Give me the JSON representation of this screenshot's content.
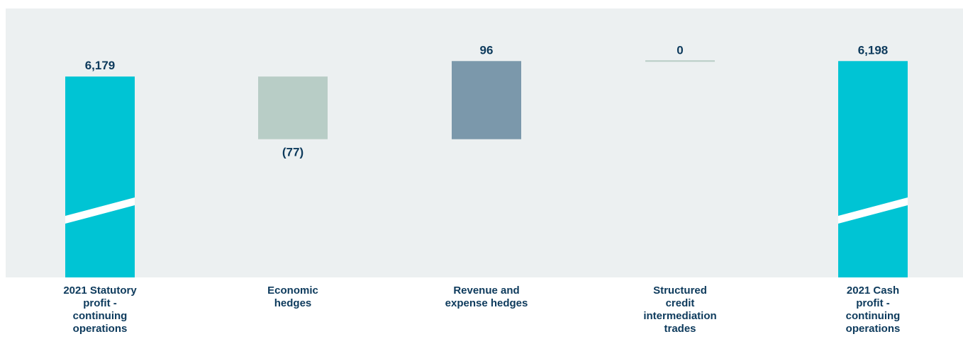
{
  "chart_data": {
    "type": "waterfall",
    "categories": [
      [
        "2021 Statutory",
        "profit -",
        "continuing",
        "operations"
      ],
      [
        "Economic",
        "hedges"
      ],
      [
        "Revenue and",
        "expense hedges"
      ],
      [
        "Structured",
        "credit",
        "intermediation",
        "trades"
      ],
      [
        "2021 Cash",
        "profit -",
        "continuing",
        "operations"
      ]
    ],
    "values": [
      6179,
      -77,
      96,
      0,
      6198
    ],
    "value_labels": [
      "6,179",
      "(77)",
      "96",
      "0",
      "6,198"
    ],
    "bar_kinds": [
      "total",
      "delta",
      "delta",
      "delta",
      "total"
    ],
    "bar_colors": [
      "#00c4d4",
      "#b8cdc6",
      "#7b98ab",
      "#b8cdc6",
      "#00c4d4"
    ],
    "axis_break_on_totals": true,
    "visible_range": [
      6100,
      6200
    ]
  },
  "colors": {
    "plot_background": "#ecf0f1",
    "label_text": "#0d3a5c"
  }
}
